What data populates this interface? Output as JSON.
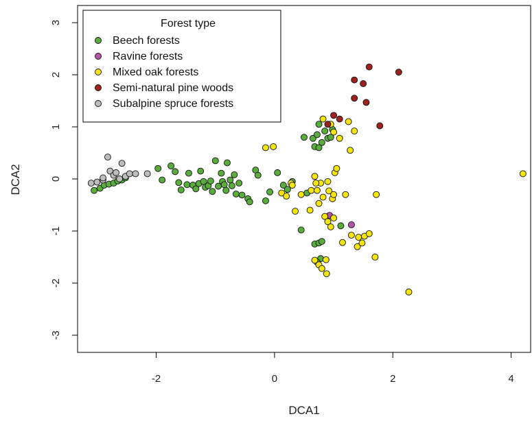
{
  "chart_data": {
    "type": "scatter",
    "xlabel": "DCA1",
    "ylabel": "DCA2",
    "xlim": [
      -3.33,
      4.33
    ],
    "ylim": [
      -3.33,
      3.33
    ],
    "x_ticks": [
      -2,
      0,
      2,
      4
    ],
    "y_ticks": [
      -3,
      -2,
      -1,
      0,
      1,
      2,
      3
    ],
    "x_tick_labels": [
      "-2",
      "0",
      "2",
      "4"
    ],
    "y_tick_labels": [
      "-3",
      "-2",
      "-1",
      "0",
      "1",
      "2",
      "3"
    ],
    "grid": false,
    "legend": {
      "title": "Forest type",
      "position": "top-left"
    },
    "series": [
      {
        "name": "Beech forests",
        "color": "#5aad3c",
        "points": [
          [
            -3.05,
            -0.22
          ],
          [
            -2.95,
            -0.18
          ],
          [
            -2.88,
            -0.12
          ],
          [
            -2.8,
            -0.1
          ],
          [
            -2.72,
            -0.08
          ],
          [
            -2.65,
            -0.04
          ],
          [
            -2.58,
            -0.02
          ],
          [
            -2.52,
            0.02
          ],
          [
            -1.97,
            0.2
          ],
          [
            -1.9,
            -0.02
          ],
          [
            -1.75,
            0.25
          ],
          [
            -1.68,
            0.14
          ],
          [
            -1.62,
            -0.07
          ],
          [
            -1.58,
            -0.21
          ],
          [
            -1.48,
            -0.11
          ],
          [
            -1.45,
            0.11
          ],
          [
            -1.38,
            -0.12
          ],
          [
            -1.33,
            -0.19
          ],
          [
            -1.28,
            -0.09
          ],
          [
            -1.25,
            0.15
          ],
          [
            -1.2,
            -0.05
          ],
          [
            -1.17,
            -0.16
          ],
          [
            -1.12,
            -0.13
          ],
          [
            -1.08,
            -0.04
          ],
          [
            -1.05,
            -0.24
          ],
          [
            -1.0,
            0.35
          ],
          [
            -0.95,
            -0.14
          ],
          [
            -0.9,
            0.11
          ],
          [
            -0.88,
            -0.05
          ],
          [
            -0.85,
            -0.11
          ],
          [
            -0.82,
            -0.22
          ],
          [
            -0.8,
            0.31
          ],
          [
            -0.75,
            -0.02
          ],
          [
            -0.72,
            -0.13
          ],
          [
            -0.68,
            0.08
          ],
          [
            -0.65,
            -0.29
          ],
          [
            -0.6,
            -0.08
          ],
          [
            -0.55,
            -0.31
          ],
          [
            -0.45,
            -0.38
          ],
          [
            -0.42,
            -0.44
          ],
          [
            -0.32,
            0.17
          ],
          [
            -0.28,
            0.07
          ],
          [
            -0.15,
            -0.42
          ],
          [
            -0.08,
            -0.25
          ],
          [
            0.05,
            0.12
          ],
          [
            0.15,
            -0.12
          ],
          [
            0.22,
            -0.2
          ],
          [
            0.3,
            -0.05
          ],
          [
            0.45,
            -0.98
          ],
          [
            0.5,
            0.8
          ],
          [
            0.55,
            -0.27
          ],
          [
            0.65,
            0.78
          ],
          [
            0.68,
            -1.25
          ],
          [
            0.72,
            0.85
          ],
          [
            0.75,
            1.05
          ],
          [
            0.75,
            -1.23
          ],
          [
            0.8,
            -1.2
          ],
          [
            0.8,
            0.7
          ],
          [
            0.85,
            0.92
          ],
          [
            0.9,
            0.78
          ],
          [
            0.95,
            0.8
          ],
          [
            0.98,
            0.95
          ],
          [
            1.12,
            -0.9
          ],
          [
            0.78,
            -1.53
          ],
          [
            0.72,
            -1.6
          ],
          [
            0.68,
            0.62
          ],
          [
            0.75,
            0.6
          ]
        ]
      },
      {
        "name": "Ravine forests",
        "color": "#b256a7",
        "points": [
          [
            0.93,
            -0.7
          ],
          [
            1.3,
            -0.88
          ]
        ]
      },
      {
        "name": "Mixed oak forests",
        "color": "#f5e50f",
        "points": [
          [
            -0.15,
            0.6
          ],
          [
            -0.02,
            0.62
          ],
          [
            0.12,
            -0.27
          ],
          [
            0.2,
            -0.33
          ],
          [
            0.28,
            -0.08
          ],
          [
            0.3,
            -0.12
          ],
          [
            0.35,
            -0.62
          ],
          [
            0.45,
            -0.3
          ],
          [
            0.6,
            -0.6
          ],
          [
            0.62,
            -0.22
          ],
          [
            0.68,
            -1.56
          ],
          [
            0.72,
            -0.22
          ],
          [
            0.75,
            -1.65
          ],
          [
            0.75,
            -0.47
          ],
          [
            0.78,
            -0.08
          ],
          [
            0.8,
            -1.72
          ],
          [
            0.82,
            1.15
          ],
          [
            0.85,
            -0.72
          ],
          [
            0.87,
            -1.55
          ],
          [
            0.88,
            -1.82
          ],
          [
            0.9,
            -0.82
          ],
          [
            0.92,
            -0.23
          ],
          [
            0.95,
            -0.92
          ],
          [
            0.98,
            -0.38
          ],
          [
            1.0,
            -0.3
          ],
          [
            1.0,
            -0.75
          ],
          [
            1.02,
            0.12
          ],
          [
            1.05,
            0.2
          ],
          [
            1.1,
            0.78
          ],
          [
            1.15,
            -1.22
          ],
          [
            1.2,
            -0.3
          ],
          [
            1.25,
            1.1
          ],
          [
            1.28,
            0.55
          ],
          [
            1.3,
            -1.08
          ],
          [
            1.35,
            0.92
          ],
          [
            1.4,
            -1.3
          ],
          [
            1.42,
            -1.12
          ],
          [
            1.48,
            -1.23
          ],
          [
            1.52,
            -1.1
          ],
          [
            1.6,
            -1.05
          ],
          [
            1.7,
            -1.5
          ],
          [
            1.72,
            -0.3
          ],
          [
            0.68,
            0.05
          ],
          [
            0.9,
            -0.05
          ],
          [
            0.7,
            -0.08
          ],
          [
            1.0,
            0.9
          ],
          [
            0.95,
            1.05
          ],
          [
            2.27,
            -2.17
          ],
          [
            4.2,
            0.1
          ],
          [
            0.82,
            -0.35
          ]
        ]
      },
      {
        "name": "Semi-natural pine woods",
        "color": "#9c2121",
        "points": [
          [
            0.9,
            1.05
          ],
          [
            1.0,
            1.22
          ],
          [
            1.1,
            1.15
          ],
          [
            1.35,
            1.9
          ],
          [
            1.35,
            1.55
          ],
          [
            1.5,
            1.83
          ],
          [
            1.55,
            1.47
          ],
          [
            1.6,
            2.15
          ],
          [
            1.78,
            1.02
          ],
          [
            2.1,
            2.05
          ]
        ]
      },
      {
        "name": "Subalpine spruce forests",
        "color": "#bdbdbd",
        "points": [
          [
            -3.1,
            -0.08
          ],
          [
            -3.0,
            -0.06
          ],
          [
            -2.9,
            -0.02
          ],
          [
            -2.82,
            0.42
          ],
          [
            -2.78,
            0.15
          ],
          [
            -2.72,
            0.07
          ],
          [
            -2.68,
            0.12
          ],
          [
            -2.58,
            0.3
          ],
          [
            -2.52,
            0.05
          ],
          [
            -2.45,
            0.1
          ],
          [
            -2.35,
            0.1
          ],
          [
            -2.15,
            0.1
          ],
          [
            -2.9,
            0.02
          ],
          [
            -2.62,
            0.0
          ]
        ]
      }
    ]
  }
}
